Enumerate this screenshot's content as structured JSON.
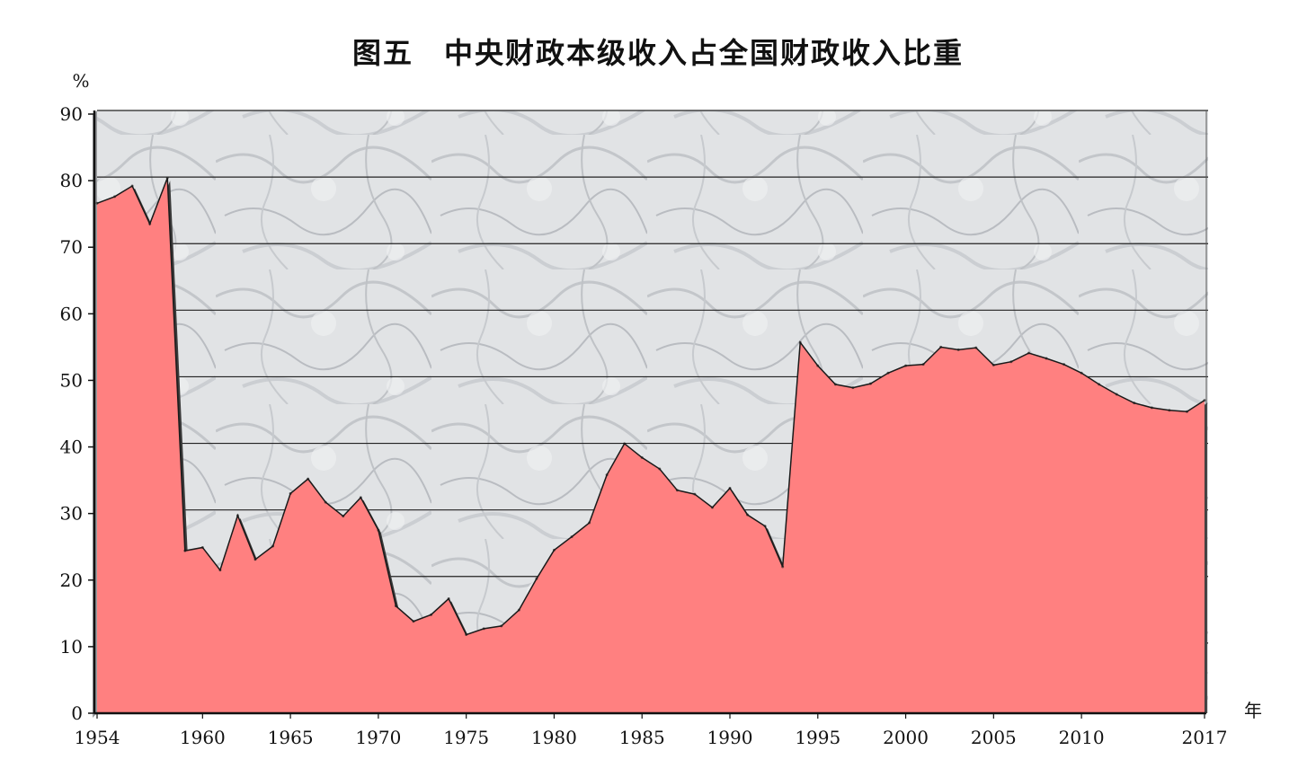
{
  "chart_data": {
    "type": "area",
    "title": "图五　中央财政本级收入占全国财政收入比重",
    "ylabel": "%",
    "xlabel": "年",
    "ylim": [
      0,
      90
    ],
    "xlim": [
      1954,
      2017
    ],
    "yticks": [
      0,
      10,
      20,
      30,
      40,
      50,
      60,
      70,
      80,
      90
    ],
    "xticks": [
      1954,
      1960,
      1965,
      1970,
      1975,
      1980,
      1985,
      1990,
      1995,
      2000,
      2005,
      2010,
      2017
    ],
    "grid": true,
    "colors": {
      "fill": "#ff8080",
      "outline": "#1a1a1a",
      "shadow": "#3a3a3a",
      "plot_bg": "#dcdfe2"
    },
    "x": [
      1954,
      1955,
      1956,
      1957,
      1958,
      1959,
      1960,
      1961,
      1962,
      1963,
      1964,
      1965,
      1966,
      1967,
      1968,
      1969,
      1970,
      1971,
      1972,
      1973,
      1974,
      1975,
      1976,
      1977,
      1978,
      1979,
      1980,
      1981,
      1982,
      1983,
      1984,
      1985,
      1986,
      1987,
      1988,
      1989,
      1990,
      1991,
      1992,
      1993,
      1994,
      1995,
      1996,
      1997,
      1998,
      1999,
      2000,
      2001,
      2002,
      2003,
      2004,
      2005,
      2006,
      2007,
      2008,
      2009,
      2010,
      2011,
      2012,
      2013,
      2014,
      2015,
      2016,
      2017
    ],
    "values": [
      76.6,
      77.6,
      79.2,
      73.5,
      80.4,
      24.4,
      24.9,
      21.5,
      29.7,
      23.1,
      25.1,
      33.0,
      35.2,
      31.7,
      29.6,
      32.4,
      27.5,
      16.1,
      13.8,
      14.8,
      17.2,
      11.8,
      12.7,
      13.1,
      15.5,
      20.2,
      24.5,
      26.5,
      28.6,
      35.8,
      40.5,
      38.4,
      36.7,
      33.5,
      32.9,
      30.9,
      33.8,
      29.8,
      28.1,
      22.0,
      55.7,
      52.2,
      49.4,
      48.9,
      49.5,
      51.1,
      52.2,
      52.4,
      55.0,
      54.6,
      54.9,
      52.3,
      52.8,
      54.1,
      53.3,
      52.4,
      51.1,
      49.4,
      47.9,
      46.6,
      45.9,
      45.5,
      45.3,
      47.0
    ]
  }
}
